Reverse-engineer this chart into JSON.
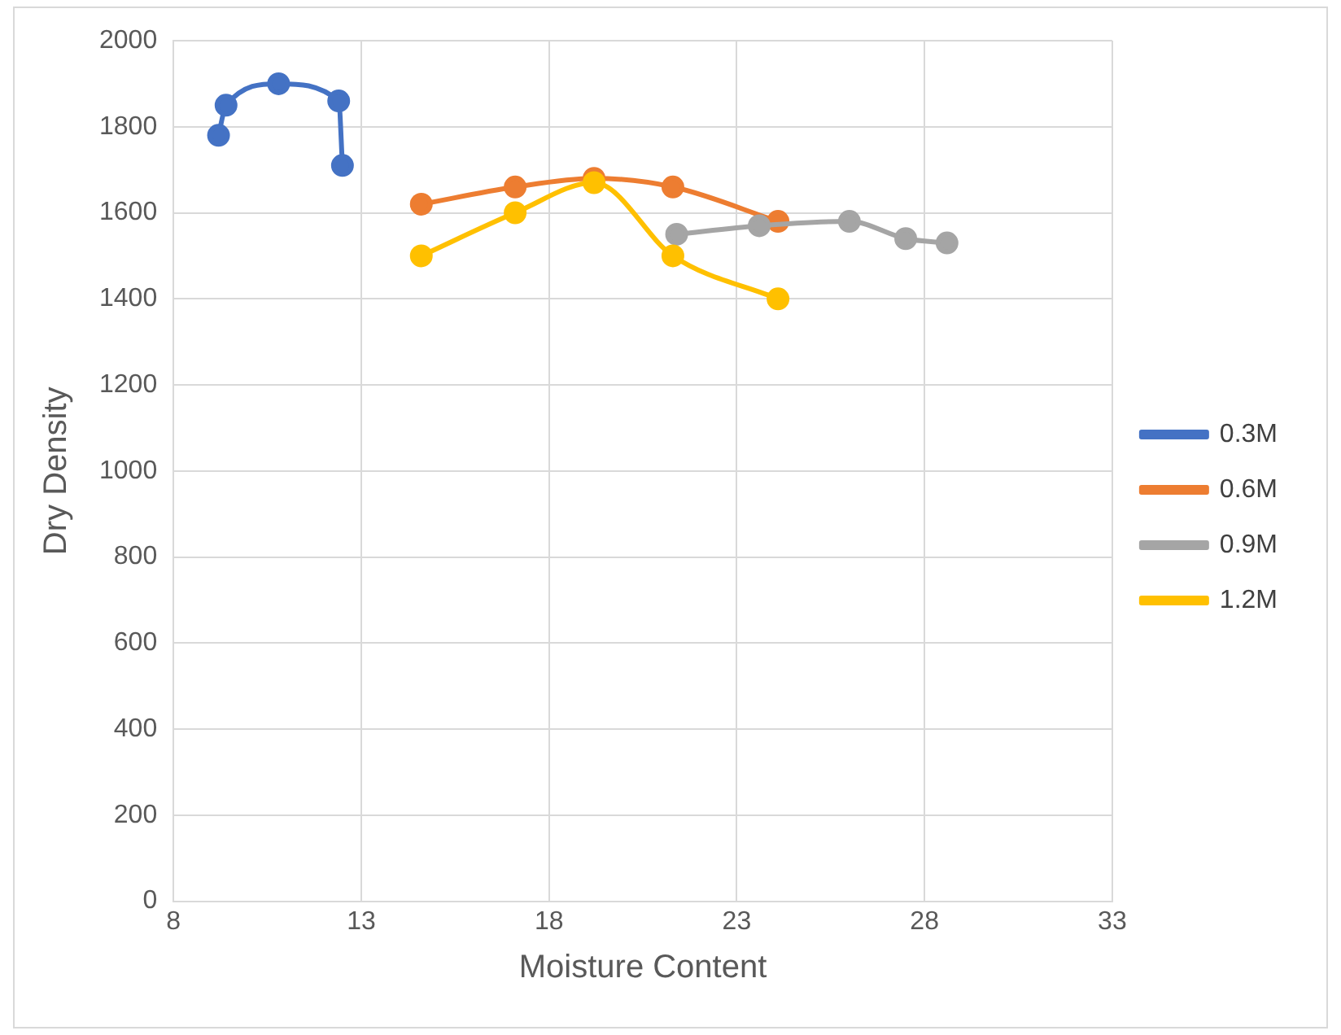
{
  "chart_data": {
    "type": "line",
    "xlabel": "Moisture Content",
    "ylabel": "Dry Density",
    "xlim": [
      8,
      33
    ],
    "xticks": [
      8,
      13,
      18,
      23,
      28,
      33
    ],
    "ylim": [
      0,
      2000
    ],
    "yticks": [
      0,
      200,
      400,
      600,
      800,
      1000,
      1200,
      1400,
      1600,
      1800,
      2000
    ],
    "grid": true,
    "legend": "right",
    "marker": "circle",
    "line_style": "solid",
    "series": [
      {
        "name": "0.3M",
        "color": "#4472c4",
        "x": [
          9.2,
          9.4,
          10.8,
          12.4,
          12.5
        ],
        "values": [
          1780,
          1850,
          1900,
          1860,
          1710
        ]
      },
      {
        "name": "0.6M",
        "color": "#ed7d31",
        "x": [
          14.6,
          17.1,
          19.2,
          21.3,
          24.1
        ],
        "values": [
          1620,
          1660,
          1680,
          1660,
          1580
        ]
      },
      {
        "name": "0.9M",
        "color": "#a5a5a5",
        "x": [
          21.4,
          23.6,
          26,
          27.5,
          28.6
        ],
        "values": [
          1550,
          1570,
          1580,
          1540,
          1530
        ]
      },
      {
        "name": "1.2M",
        "color": "#ffc000",
        "x": [
          14.6,
          17.1,
          19.2,
          21.3,
          24.1
        ],
        "values": [
          1500,
          1600,
          1670,
          1500,
          1400
        ]
      }
    ]
  }
}
